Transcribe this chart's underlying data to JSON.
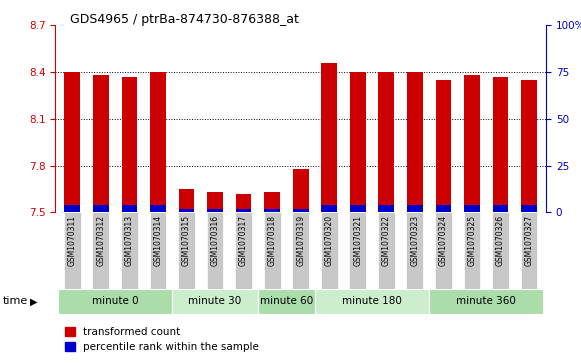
{
  "title": "GDS4965 / ptrBa-874730-876388_at",
  "samples": [
    "GSM1070311",
    "GSM1070312",
    "GSM1070313",
    "GSM1070314",
    "GSM1070315",
    "GSM1070316",
    "GSM1070317",
    "GSM1070318",
    "GSM1070319",
    "GSM1070320",
    "GSM1070321",
    "GSM1070322",
    "GSM1070323",
    "GSM1070324",
    "GSM1070325",
    "GSM1070326",
    "GSM1070327"
  ],
  "transformed_count": [
    8.4,
    8.38,
    8.37,
    8.4,
    7.65,
    7.63,
    7.62,
    7.63,
    7.78,
    8.46,
    8.4,
    8.4,
    8.4,
    8.35,
    8.38,
    8.37,
    8.35
  ],
  "percentile_rank": [
    4,
    4,
    4,
    4,
    2,
    2,
    2,
    2,
    2,
    4,
    4,
    4,
    4,
    4,
    4,
    4,
    4
  ],
  "base_value": 7.5,
  "ylim_left": [
    7.5,
    8.7
  ],
  "ylim_right": [
    0,
    100
  ],
  "yticks_left": [
    7.5,
    7.8,
    8.1,
    8.4,
    8.7
  ],
  "yticks_right": [
    0,
    25,
    50,
    75,
    100
  ],
  "ytick_labels_right": [
    "0",
    "25",
    "50",
    "75",
    "100%"
  ],
  "groups": [
    {
      "label": "minute 0",
      "start": 0,
      "end": 3
    },
    {
      "label": "minute 30",
      "start": 4,
      "end": 6
    },
    {
      "label": "minute 60",
      "start": 7,
      "end": 8
    },
    {
      "label": "minute 180",
      "start": 9,
      "end": 12
    },
    {
      "label": "minute 360",
      "start": 13,
      "end": 16
    }
  ],
  "bar_width": 0.55,
  "bar_color_red": "#CC0000",
  "bar_color_blue": "#0000CC",
  "bg_color_plot": "#FFFFFF",
  "bg_color_xtick": "#C8C8C8",
  "group_colors": [
    "#AADDAA",
    "#CCEECC"
  ],
  "grid_color": "#000000",
  "legend_red_label": "transformed count",
  "legend_blue_label": "percentile rank within the sample",
  "xlabel": "time",
  "left_axis_color": "#CC0000",
  "right_axis_color": "#0000BB",
  "left_spine_color": "#CC0000",
  "right_spine_color": "#0000BB"
}
